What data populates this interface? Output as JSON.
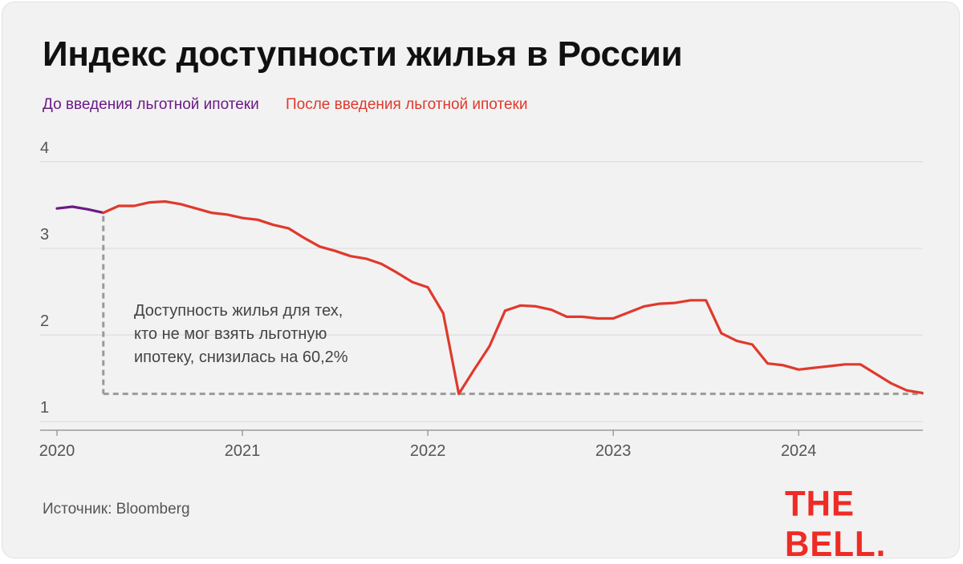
{
  "title": "Индекс доступности жилья в России",
  "legend": {
    "before": "До введения льготной ипотеки",
    "after": "После введения льготной ипотеки"
  },
  "colors": {
    "before": "#6b1a86",
    "after": "#e0392d",
    "grid": "#d9d9d9",
    "reference": "#9a9a9a",
    "logo": "#ef2b25"
  },
  "annotation": {
    "lines": [
      "Доступность жилья для тех,",
      "кто не мог взять льготную",
      "ипотеку, снизилась на 60,2%"
    ]
  },
  "source": "Источник: Bloomberg",
  "logo": "THE BELL.",
  "chart_data": {
    "type": "line",
    "title": "Индекс доступности жилья в России",
    "xlabel": "",
    "ylabel": "",
    "ylim": [
      0.9,
      4.1
    ],
    "xlim": [
      2020.0,
      2024.67
    ],
    "grid": "horizontal",
    "legend_position": "top-left",
    "y_ticks": [
      "1",
      "2",
      "3",
      "4"
    ],
    "x_ticks": [
      "2020",
      "2021",
      "2022",
      "2023",
      "2024"
    ],
    "x_tick_values": [
      2020,
      2021,
      2022,
      2023,
      2024
    ],
    "y_tick_values": [
      1,
      2,
      3,
      4
    ],
    "reference": {
      "x": 2020.25,
      "y": 1.32
    },
    "series": [
      {
        "name": "До введения льготной ипотеки",
        "color": "#6b1a86",
        "x": [
          2020.0,
          2020.083,
          2020.167,
          2020.25
        ],
        "y": [
          3.46,
          3.48,
          3.45,
          3.41
        ]
      },
      {
        "name": "После введения льготной ипотеки",
        "color": "#e0392d",
        "x": [
          2020.25,
          2020.333,
          2020.417,
          2020.5,
          2020.583,
          2020.667,
          2020.75,
          2020.833,
          2020.917,
          2021.0,
          2021.083,
          2021.167,
          2021.25,
          2021.333,
          2021.417,
          2021.5,
          2021.583,
          2021.667,
          2021.75,
          2021.833,
          2021.917,
          2022.0,
          2022.083,
          2022.167,
          2022.25,
          2022.333,
          2022.417,
          2022.5,
          2022.583,
          2022.667,
          2022.75,
          2022.833,
          2022.917,
          2023.0,
          2023.083,
          2023.167,
          2023.25,
          2023.333,
          2023.417,
          2023.5,
          2023.583,
          2023.667,
          2023.75,
          2023.833,
          2023.917,
          2024.0,
          2024.083,
          2024.167,
          2024.25,
          2024.333,
          2024.417,
          2024.5,
          2024.583,
          2024.667
        ],
        "y": [
          3.41,
          3.49,
          3.49,
          3.53,
          3.54,
          3.51,
          3.46,
          3.41,
          3.39,
          3.35,
          3.33,
          3.27,
          3.23,
          3.12,
          3.02,
          2.97,
          2.91,
          2.88,
          2.82,
          2.72,
          2.61,
          2.55,
          2.25,
          1.32,
          1.6,
          1.87,
          2.28,
          2.34,
          2.33,
          2.29,
          2.21,
          2.21,
          2.19,
          2.19,
          2.26,
          2.33,
          2.36,
          2.37,
          2.4,
          2.4,
          2.02,
          1.93,
          1.89,
          1.67,
          1.65,
          1.6,
          1.62,
          1.64,
          1.66,
          1.66,
          1.55,
          1.44,
          1.36,
          1.33
        ]
      }
    ]
  }
}
